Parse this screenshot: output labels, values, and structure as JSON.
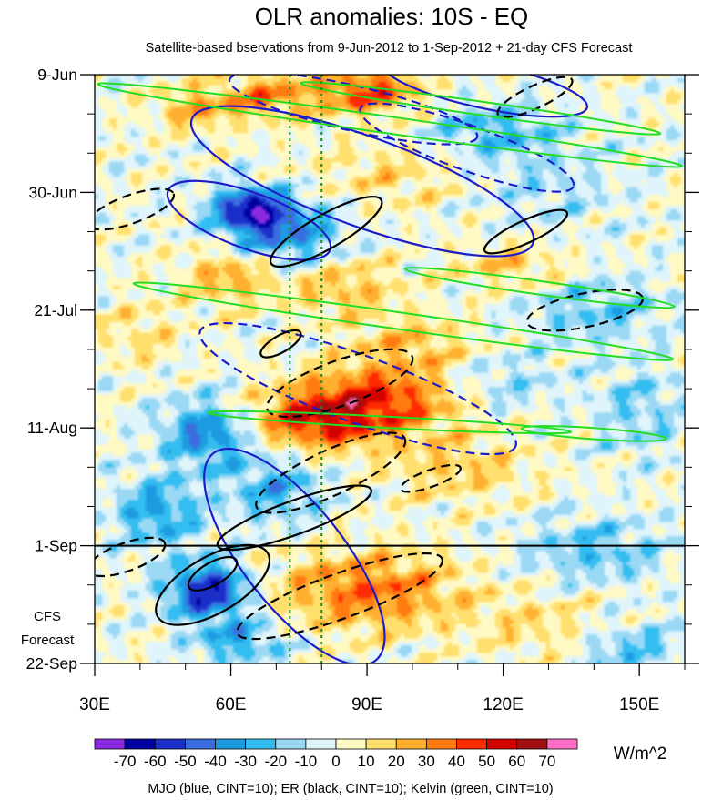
{
  "chart_data": {
    "type": "heatmap",
    "title": "OLR anomalies: 10S - EQ",
    "subtitle": "Satellite-based bservations from 9-Jun-2012 to 1-Sep-2012 + 21-day CFS Forecast",
    "x_range": [
      30,
      160
    ],
    "x_ticks": [
      {
        "value": 30,
        "label": "30E"
      },
      {
        "value": 60,
        "label": "60E"
      },
      {
        "value": 90,
        "label": "90E"
      },
      {
        "value": 120,
        "label": "120E"
      },
      {
        "value": 150,
        "label": "150E"
      }
    ],
    "x_minor_step": 10,
    "y_range_days": [
      0,
      105
    ],
    "y_ticks": [
      {
        "day": 0,
        "label": "9-Jun"
      },
      {
        "day": 21,
        "label": "30-Jun"
      },
      {
        "day": 42,
        "label": "21-Jul"
      },
      {
        "day": 63,
        "label": "11-Aug"
      },
      {
        "day": 84,
        "label": "1-Sep"
      },
      {
        "day": 105,
        "label": "22-Sep"
      }
    ],
    "y_minor_step_days": 7,
    "forecast_start_day": 84,
    "forecast_label_lines": [
      "CFS",
      "Forecast"
    ],
    "reference_lines_lon": [
      73,
      80
    ],
    "colorbar": {
      "unit": "W/m^2",
      "levels": [
        -70,
        -60,
        -50,
        -40,
        -30,
        -20,
        -10,
        0,
        10,
        20,
        30,
        40,
        50,
        60,
        70
      ],
      "level_labels": [
        "-70",
        "-60",
        "-50",
        "-40",
        "-30",
        "-20",
        "-10",
        "0",
        "10",
        "20",
        "30",
        "40",
        "50",
        "60",
        "70"
      ],
      "colors": [
        "#8a2be2",
        "#0000a0",
        "#1a2fc8",
        "#3a6ee0",
        "#1e9be0",
        "#34bdf0",
        "#9ad8f4",
        "#dff4fb",
        "#fff9c4",
        "#ffdf6e",
        "#ffb030",
        "#ff7a10",
        "#ff2a00",
        "#d40000",
        "#a01010",
        "#ff6ec7"
      ]
    },
    "footer_note": "MJO (blue, CINT=10); ER (black, CINT=10); Kelvin (green, CINT=10)",
    "series": [
      {
        "name": "MJO",
        "color": "#1c1cc8",
        "contours": [
          {
            "lon": 89,
            "day": 19,
            "rlon": 40,
            "rday": 8,
            "angle": 20,
            "sign": 1
          },
          {
            "lon": 64,
            "day": 26,
            "rlon": 19,
            "rday": 5,
            "angle": 20,
            "sign": 1
          },
          {
            "lon": 88,
            "day": 56,
            "rlon": 37,
            "rday": 6,
            "angle": 20,
            "sign": -1
          },
          {
            "lon": 74,
            "day": 86,
            "rlon": 29,
            "rday": 9,
            "angle": 52,
            "sign": 1
          },
          {
            "lon": 87,
            "day": 6,
            "rlon": 28,
            "rday": 4,
            "angle": 13,
            "sign": -1
          },
          {
            "lon": 116,
            "day": 2,
            "rlon": 23,
            "rday": 4,
            "angle": 12,
            "sign": 1
          },
          {
            "lon": 112,
            "day": 13,
            "rlon": 25,
            "rday": 4,
            "angle": 20,
            "sign": -1
          }
        ]
      },
      {
        "name": "ER",
        "color": "#000000",
        "contours": [
          {
            "lon": 56,
            "day": 91,
            "rlon": 14,
            "rday": 5,
            "angle": -30,
            "sign": 1
          },
          {
            "lon": 56,
            "day": 89,
            "rlon": 6,
            "rday": 2,
            "angle": -30,
            "sign": 1
          },
          {
            "lon": 74,
            "day": 79,
            "rlon": 18,
            "rday": 3,
            "angle": -20,
            "sign": 1
          },
          {
            "lon": 82,
            "day": 71,
            "rlon": 18,
            "rday": 4,
            "angle": -25,
            "sign": -1
          },
          {
            "lon": 84,
            "day": 55,
            "rlon": 17,
            "rday": 4,
            "angle": -20,
            "sign": -1
          },
          {
            "lon": 81,
            "day": 28,
            "rlon": 14,
            "rday": 3,
            "angle": -30,
            "sign": 1
          },
          {
            "lon": 71,
            "day": 48,
            "rlon": 5,
            "rday": 1.5,
            "angle": -30,
            "sign": 1
          },
          {
            "lon": 125,
            "day": 28,
            "rlon": 10,
            "rday": 2,
            "angle": -25,
            "sign": 1
          },
          {
            "lon": 138,
            "day": 42,
            "rlon": 13,
            "rday": 3,
            "angle": -12,
            "sign": -1
          },
          {
            "lon": 38,
            "day": 24,
            "rlon": 10,
            "rday": 2.5,
            "angle": -20,
            "sign": -1
          },
          {
            "lon": 37,
            "day": 86,
            "rlon": 9,
            "rday": 2.5,
            "angle": -20,
            "sign": -1
          },
          {
            "lon": 84,
            "day": 93,
            "rlon": 24,
            "rday": 4,
            "angle": -20,
            "sign": -1
          },
          {
            "lon": 127,
            "day": 4,
            "rlon": 9,
            "rday": 2,
            "angle": -25,
            "sign": -1
          },
          {
            "lon": 104,
            "day": 72,
            "rlon": 7,
            "rday": 1.5,
            "angle": -20,
            "sign": -1
          }
        ]
      },
      {
        "name": "Kelvin",
        "color": "#22dd22",
        "contours": [
          {
            "lon": 95,
            "day": 9,
            "rlon": 65,
            "rday": 1.5,
            "angle": 8,
            "sign": 1
          },
          {
            "lon": 115,
            "day": 6,
            "rlon": 40,
            "rday": 1.2,
            "angle": 8,
            "sign": 1
          },
          {
            "lon": 98,
            "day": 44,
            "rlon": 60,
            "rday": 1.5,
            "angle": 8,
            "sign": 1
          },
          {
            "lon": 128,
            "day": 38,
            "rlon": 30,
            "rday": 1.2,
            "angle": 8,
            "sign": 1
          },
          {
            "lon": 95,
            "day": 62,
            "rlon": 40,
            "rday": 1.0,
            "angle": 3,
            "sign": 1
          },
          {
            "lon": 140,
            "day": 64,
            "rlon": 16,
            "rday": 1.0,
            "angle": 4,
            "sign": 1
          }
        ]
      }
    ]
  }
}
